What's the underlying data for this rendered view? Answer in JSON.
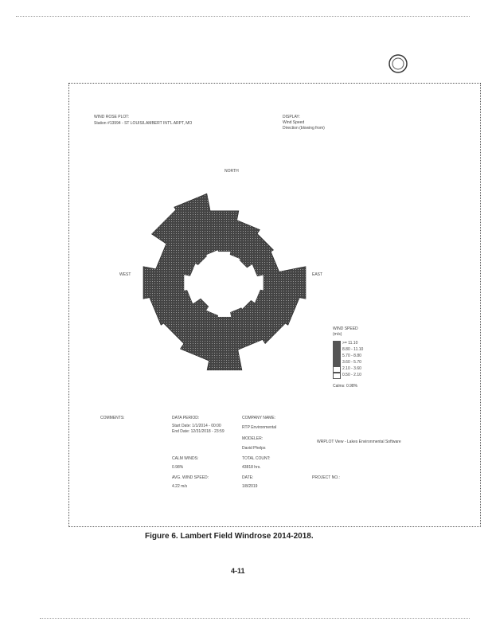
{
  "figure": {
    "plot_title": "WIND ROSE PLOT:",
    "station": "Station #13994 - ST LOUIS/LAMBERT INT'L ARPT, MO",
    "display_label": "DISPLAY:",
    "display_value": "Wind Speed",
    "display_direction": "Direction (blowing from)",
    "directions": {
      "north": "NORTH",
      "west": "WEST",
      "east": "EAST"
    },
    "legend": {
      "title": "WIND SPEED",
      "unit": "(m/s)",
      "bins": [
        ">= 11.10",
        "8.80 - 11.10",
        "5.70 - 8.80",
        "3.60 - 5.70",
        "2.10 - 3.60",
        "0.50 - 2.10"
      ],
      "calms": "Calms: 0.98%"
    },
    "footer": {
      "comments": "COMMENTS:",
      "data_period_label": "DATA PERIOD:",
      "start": "Start Date: 1/1/2014 - 00:00",
      "end": "End Date: 12/31/2018 - 23:59",
      "company_label": "COMPANY NAME:",
      "company": "RTP Environmental",
      "modeler_label": "MODELER:",
      "modeler": "David Phelps",
      "calm_label": "CALM WINDS:",
      "calm": "0.98%",
      "total_label": "TOTAL COUNT:",
      "total": "43818 hrs.",
      "avg_label": "AVG. WIND SPEED:",
      "avg": "4.22 m/s",
      "date_label": "DATE:",
      "date": "1/8/2019",
      "project_label": "PROJECT NO.:",
      "wrplot": "WRPLOT View - Lakes Environmental Software"
    }
  },
  "caption": "Figure 6. Lambert Field Windrose 2014-2018.",
  "page_number": "4-11"
}
